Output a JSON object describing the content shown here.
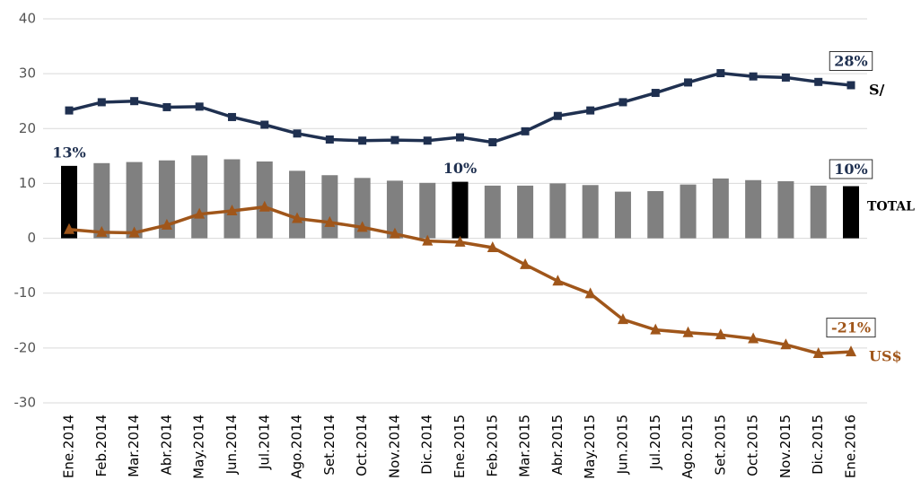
{
  "chart_data": {
    "type": "combo",
    "categories": [
      "Ene.2014",
      "Feb.2014",
      "Mar.2014",
      "Abr.2014",
      "May.2014",
      "Jun.2014",
      "Jul.2014",
      "Ago.2014",
      "Set.2014",
      "Oct.2014",
      "Nov.2014",
      "Dic.2014",
      "Ene.2015",
      "Feb.2015",
      "Mar.2015",
      "Abr.2015",
      "May.2015",
      "Jun.2015",
      "Jul.2015",
      "Ago.2015",
      "Set.2015",
      "Oct.2015",
      "Nov.2015",
      "Dic.2015",
      "Ene.2016"
    ],
    "ylim": [
      -30,
      40
    ],
    "yticks": [
      -30,
      -20,
      -10,
      0,
      10,
      20,
      30,
      40
    ],
    "grid": true,
    "series": [
      {
        "name": "TOTAL",
        "type": "bar",
        "color": "#808080",
        "colors": [
          "#000000",
          "#808080",
          "#808080",
          "#808080",
          "#808080",
          "#808080",
          "#808080",
          "#808080",
          "#808080",
          "#808080",
          "#808080",
          "#808080",
          "#000000",
          "#808080",
          "#808080",
          "#808080",
          "#808080",
          "#808080",
          "#808080",
          "#808080",
          "#808080",
          "#808080",
          "#808080",
          "#808080",
          "#000000"
        ],
        "values": [
          13.2,
          13.7,
          13.9,
          14.2,
          15.1,
          14.4,
          14.0,
          12.3,
          11.5,
          11.0,
          10.5,
          10.1,
          10.3,
          9.6,
          9.6,
          10.0,
          9.7,
          8.5,
          8.6,
          9.8,
          10.9,
          10.6,
          10.4,
          9.6,
          9.5
        ],
        "value_labels": [
          "13%",
          null,
          null,
          null,
          null,
          null,
          null,
          null,
          null,
          null,
          null,
          null,
          "10%",
          null,
          null,
          null,
          null,
          null,
          null,
          null,
          null,
          null,
          null,
          null,
          "10%"
        ]
      },
      {
        "name": "S/",
        "type": "line",
        "marker": "square",
        "color": "#1f3050",
        "values": [
          23.3,
          24.8,
          25.0,
          23.9,
          24.0,
          22.1,
          20.7,
          19.1,
          18.0,
          17.8,
          17.9,
          17.8,
          18.4,
          17.5,
          19.5,
          22.3,
          23.3,
          24.8,
          26.5,
          28.4,
          30.1,
          29.5,
          29.3,
          28.5,
          27.9
        ],
        "value_labels": [
          null,
          null,
          null,
          null,
          null,
          null,
          null,
          null,
          null,
          null,
          null,
          null,
          null,
          null,
          null,
          null,
          null,
          null,
          null,
          null,
          null,
          null,
          null,
          null,
          "28%"
        ]
      },
      {
        "name": "US$",
        "type": "line",
        "marker": "triangle",
        "color": "#a0561a",
        "values": [
          1.6,
          1.1,
          1.0,
          2.4,
          4.4,
          5.0,
          5.7,
          3.6,
          2.9,
          2.0,
          0.8,
          -0.5,
          -0.7,
          -1.7,
          -4.8,
          -7.8,
          -10.1,
          -14.8,
          -16.7,
          -17.2,
          -17.6,
          -18.3,
          -19.4,
          -21.0,
          -20.7
        ],
        "value_labels": [
          null,
          null,
          null,
          null,
          null,
          null,
          null,
          null,
          null,
          null,
          null,
          null,
          null,
          null,
          null,
          null,
          null,
          null,
          null,
          null,
          null,
          null,
          null,
          null,
          "-21%"
        ]
      }
    ]
  }
}
